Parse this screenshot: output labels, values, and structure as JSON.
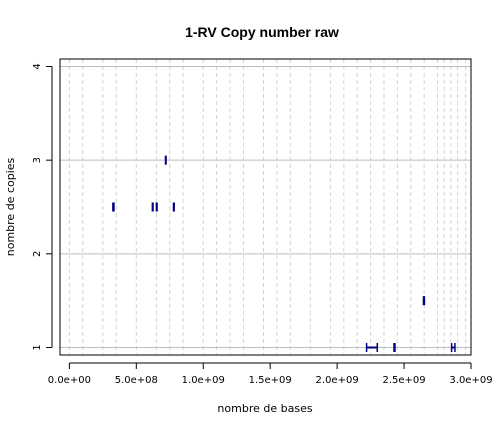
{
  "chart_data": {
    "type": "scatter",
    "title": "1-RV Copy number raw",
    "xlabel": "nombre de bases",
    "ylabel": "nombre de copies",
    "xlim": [
      -70000000,
      3000000000
    ],
    "ylim": [
      0.92,
      4.08
    ],
    "x_ticks": [
      0,
      500000000,
      1000000000,
      1500000000,
      2000000000,
      2500000000,
      3000000000
    ],
    "x_tick_labels": [
      "0.0e+00",
      "5.0e+08",
      "1.0e+09",
      "1.5e+09",
      "2.0e+09",
      "2.5e+09",
      "3.0e+09"
    ],
    "y_ticks": [
      1,
      2,
      3,
      4
    ],
    "y_tick_labels": [
      "1",
      "2",
      "3",
      "4"
    ],
    "horizontal_grid": [
      1,
      2,
      3,
      4
    ],
    "vertical_dashed_grid_x": [
      0,
      100000000,
      250000000,
      350000000,
      500000000,
      650000000,
      750000000,
      850000000,
      1000000000,
      1100000000,
      1200000000,
      1300000000,
      1450000000,
      1550000000,
      1650000000,
      1800000000,
      1950000000,
      2050000000,
      2150000000,
      2250000000,
      2350000000,
      2450000000,
      2550000000,
      2650000000,
      2750000000,
      2800000000,
      2850000000,
      2900000000,
      2960000000
    ],
    "segments": [
      {
        "x_start": 325000000,
        "x_end": 333000000,
        "value": 2.5
      },
      {
        "x_start": 620000000,
        "x_end": 625000000,
        "value": 2.5
      },
      {
        "x_start": 650000000,
        "x_end": 655000000,
        "value": 2.5
      },
      {
        "x_start": 778000000,
        "x_end": 783000000,
        "value": 2.5
      },
      {
        "x_start": 718000000,
        "x_end": 722000000,
        "value": 3
      },
      {
        "x_start": 2220000000,
        "x_end": 2300000000,
        "value": 1
      },
      {
        "x_start": 2425000000,
        "x_end": 2432000000,
        "value": 1
      },
      {
        "x_start": 2645000000,
        "x_end": 2652000000,
        "value": 1.5
      },
      {
        "x_start": 2855000000,
        "x_end": 2880000000,
        "value": 1
      }
    ],
    "segment_color": "#000080",
    "grid_color": "#bebebe",
    "dashed_grid_color": "#d3d3d3",
    "grid": true,
    "legend": "none"
  }
}
